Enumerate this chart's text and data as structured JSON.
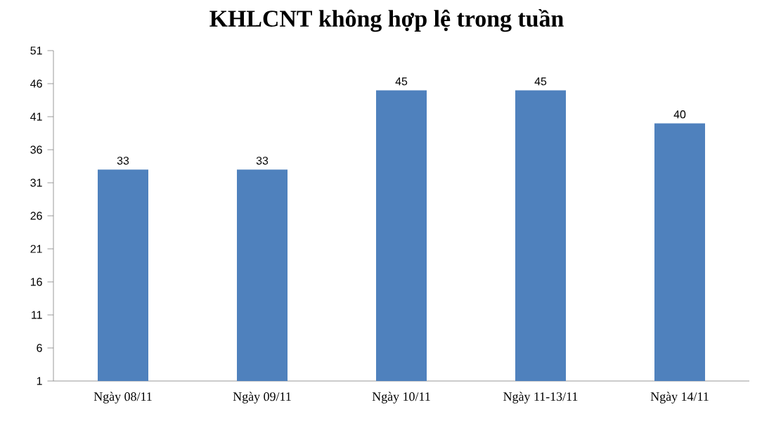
{
  "chart_data": {
    "type": "bar",
    "title": "KHLCNT không hợp lệ trong tuần",
    "categories": [
      "Ngày 08/11",
      "Ngày 09/11",
      "Ngày 10/11",
      "Ngày 11-13/11",
      "Ngày 14/11"
    ],
    "values": [
      33,
      33,
      45,
      45,
      40
    ],
    "color": "#4f81bd",
    "ylim": [
      1,
      51
    ],
    "yticks": [
      1,
      6,
      11,
      16,
      21,
      26,
      31,
      36,
      41,
      46,
      51
    ],
    "data_labels": true
  }
}
